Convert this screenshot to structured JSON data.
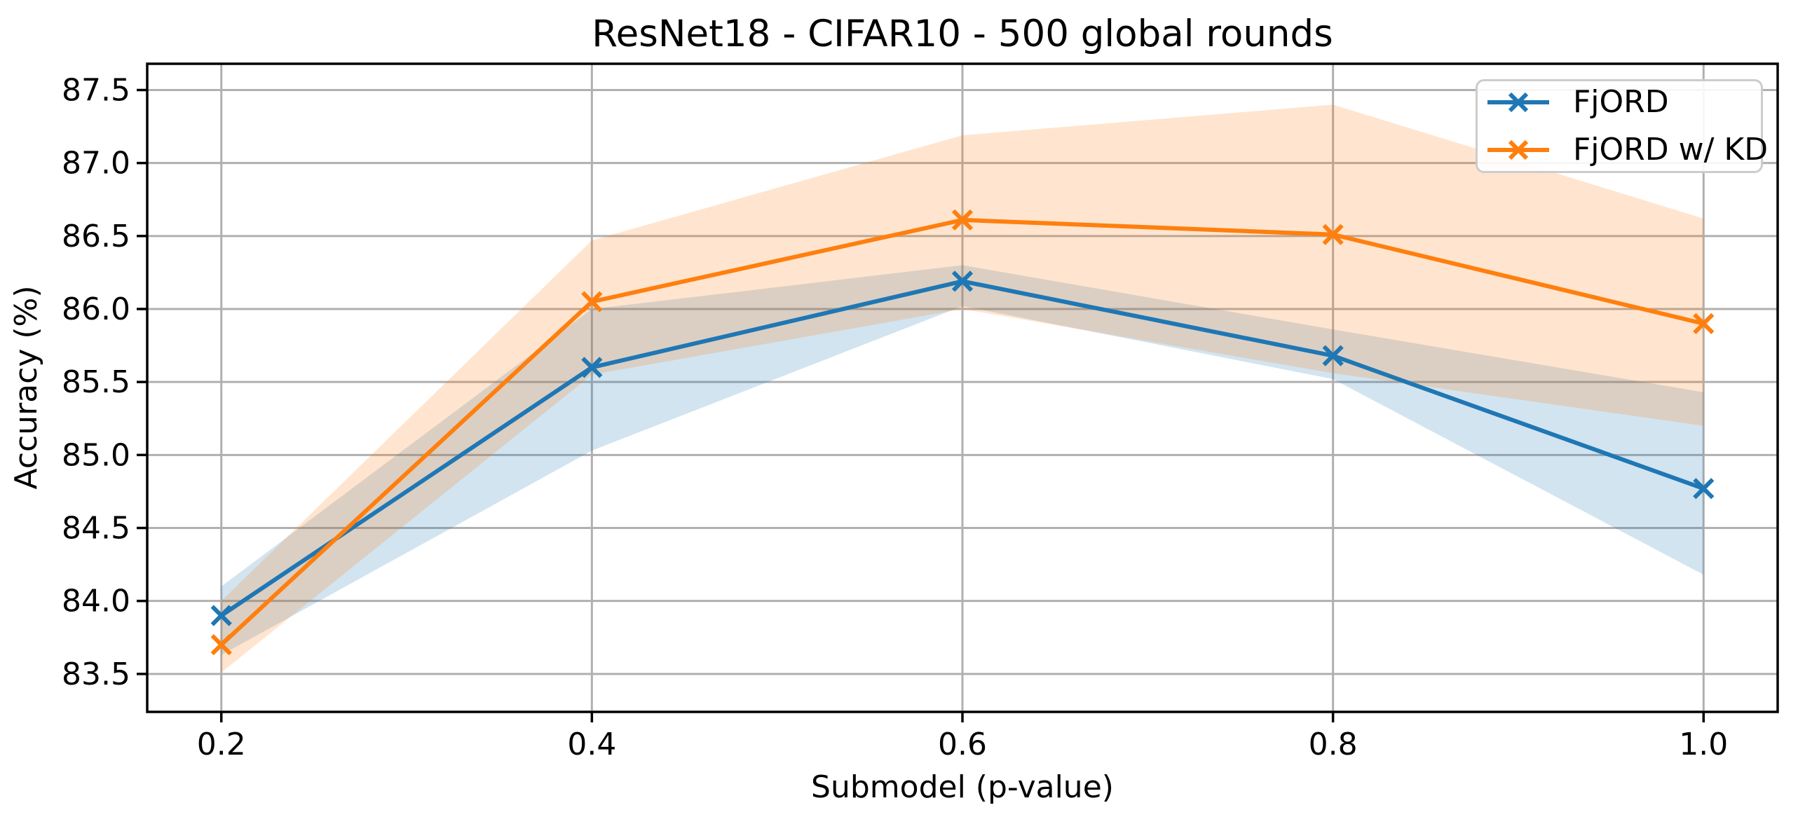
{
  "figure": {
    "background": "#ffffff"
  },
  "chart_data": {
    "type": "line",
    "title": "ResNet18 - CIFAR10 - 500 global rounds",
    "xlabel": "Submodel (p-value)",
    "ylabel": "Accuracy (%)",
    "x": [
      0.2,
      0.4,
      0.6,
      0.8,
      1.0
    ],
    "xticks": [
      0.2,
      0.4,
      0.6,
      0.8,
      1.0
    ],
    "xtick_labels": [
      "0.2",
      "0.4",
      "0.6",
      "0.8",
      "1.0"
    ],
    "yticks": [
      83.5,
      84.0,
      84.5,
      85.0,
      85.5,
      86.0,
      86.5,
      87.0,
      87.5
    ],
    "ytick_labels": [
      "83.5",
      "84.0",
      "84.5",
      "85.0",
      "85.5",
      "86.0",
      "86.5",
      "87.0",
      "87.5"
    ],
    "xlim": [
      0.16,
      1.04
    ],
    "ylim": [
      83.24,
      87.68
    ],
    "grid": true,
    "grid_color": "#b0b0b0",
    "legend_position": "upper right",
    "series": [
      {
        "name": "FjORD",
        "color": "#1f77b4",
        "marker": "x",
        "values": [
          83.9,
          85.6,
          86.19,
          85.68,
          84.77
        ],
        "band_low": [
          83.63,
          85.03,
          86.02,
          85.52,
          84.18
        ],
        "band_high": [
          84.1,
          86.0,
          86.3,
          85.86,
          85.43
        ],
        "band_alpha": 0.2
      },
      {
        "name": "FjORD w/ KD",
        "color": "#ff7f0e",
        "marker": "x",
        "values": [
          83.7,
          86.05,
          86.61,
          86.51,
          85.9
        ],
        "band_low": [
          83.51,
          85.55,
          86.0,
          85.56,
          85.2
        ],
        "band_high": [
          84.0,
          86.47,
          87.19,
          87.4,
          86.62
        ],
        "band_alpha": 0.2
      }
    ]
  }
}
